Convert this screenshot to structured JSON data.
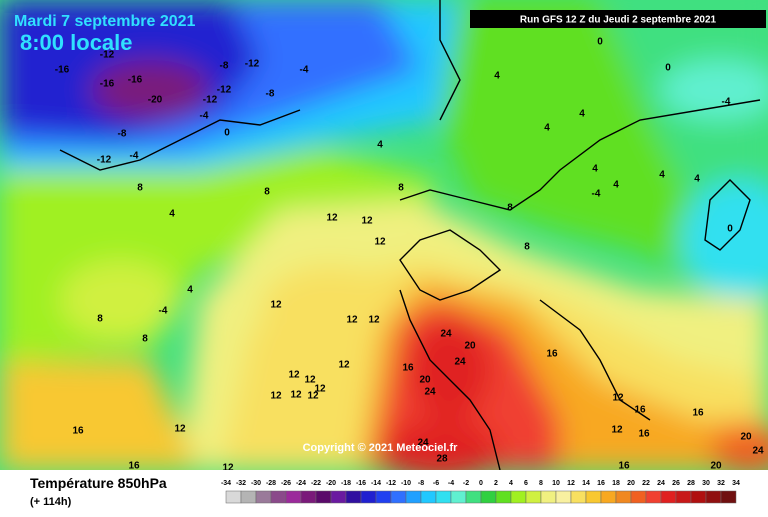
{
  "header": {
    "date": "Mardi 7 septembre 2021",
    "time": "8:00 locale",
    "run": "Run GFS 12 Z du Jeudi 2 septembre 2021"
  },
  "copyright": "Copyright © 2021 Meteociel.fr",
  "footer": {
    "title": "Température 850hPa",
    "lead": "(+ 114h)"
  },
  "colorbar": {
    "ticks": [
      -34,
      -32,
      -30,
      -28,
      -26,
      -24,
      -22,
      -20,
      -18,
      -16,
      -14,
      -12,
      -10,
      -8,
      -6,
      -4,
      -2,
      0,
      2,
      4,
      6,
      8,
      10,
      12,
      14,
      16,
      18,
      20,
      22,
      24,
      26,
      28,
      30,
      32,
      34
    ],
    "colors": [
      "#d9d9d9",
      "#b4b4b4",
      "#9a7a9a",
      "#8a4a8a",
      "#9b2a9b",
      "#7a1a7a",
      "#5a0a6a",
      "#6a1aa0",
      "#3010a0",
      "#2020d0",
      "#2040f0",
      "#3070ff",
      "#20a0ff",
      "#20c8ff",
      "#30e0f0",
      "#60f0d0",
      "#40e080",
      "#30d040",
      "#60e020",
      "#a0f020",
      "#d0f040",
      "#f0f080",
      "#f8f0a0",
      "#f8e060",
      "#f8c830",
      "#f8a820",
      "#f08820",
      "#f06020",
      "#f04030",
      "#e02020",
      "#c81818",
      "#b01010",
      "#901010",
      "#701010"
    ]
  },
  "contour_labels": [
    -16,
    -12,
    -16,
    -16,
    -20,
    -8,
    -12,
    -4,
    -12,
    -8,
    -12,
    -4,
    -8,
    0,
    -12,
    -4,
    4,
    8,
    8,
    8,
    4,
    12,
    12,
    12,
    4,
    8,
    -4,
    8,
    12,
    12,
    12,
    12,
    12,
    12,
    16,
    12,
    12,
    12,
    12,
    12,
    16,
    16,
    12,
    24,
    20,
    24,
    20,
    24,
    24,
    28,
    16,
    12,
    16,
    12,
    16,
    16,
    20,
    24,
    20,
    16,
    0,
    0,
    4,
    -4,
    4,
    4,
    -4,
    4,
    4,
    8,
    8,
    0,
    4,
    4
  ]
}
